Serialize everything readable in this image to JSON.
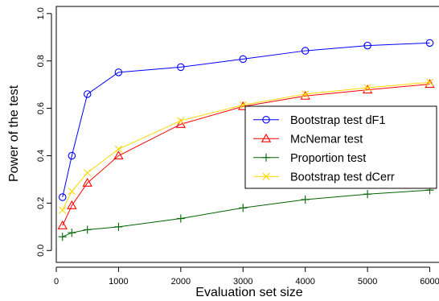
{
  "chart_data": {
    "type": "line",
    "title": "",
    "xlabel": "Evaluation set size",
    "ylabel": "Power of the test",
    "xlim": [
      0,
      6200
    ],
    "ylim": [
      -0.05,
      1.03
    ],
    "xticks": [
      0,
      1000,
      2000,
      3000,
      4000,
      5000,
      6000
    ],
    "xtick_labels": [
      "0",
      "1000",
      "2000",
      "3000",
      "4000",
      "5000",
      "6000"
    ],
    "yticks": [
      0.0,
      0.2,
      0.4,
      0.6,
      0.8,
      1.0
    ],
    "ytick_labels": [
      "0.0",
      "0.2",
      "0.4",
      "0.6",
      "0.8",
      "1.0"
    ],
    "grid": false,
    "legend_position": "right",
    "x": [
      100,
      250,
      500,
      1000,
      2000,
      3000,
      4000,
      5000,
      6000
    ],
    "series": [
      {
        "name": "Bootstrap test dF1",
        "color": "#0000ff",
        "marker": "circle",
        "values": [
          0.225,
          0.4,
          0.66,
          0.752,
          0.774,
          0.808,
          0.843,
          0.865,
          0.876
        ]
      },
      {
        "name": "McNemar test",
        "color": "#ff0000",
        "marker": "triangle",
        "values": [
          0.105,
          0.19,
          0.285,
          0.4,
          0.533,
          0.608,
          0.652,
          0.678,
          0.702
        ]
      },
      {
        "name": "Proportion test",
        "color": "#006400",
        "marker": "plus",
        "values": [
          0.058,
          0.075,
          0.088,
          0.1,
          0.135,
          0.18,
          0.215,
          0.238,
          0.255
        ]
      },
      {
        "name": "Bootstrap test dCerr",
        "color": "#ffd700",
        "marker": "x",
        "values": [
          0.17,
          0.25,
          0.328,
          0.428,
          0.548,
          0.614,
          0.66,
          0.687,
          0.71
        ]
      }
    ]
  }
}
